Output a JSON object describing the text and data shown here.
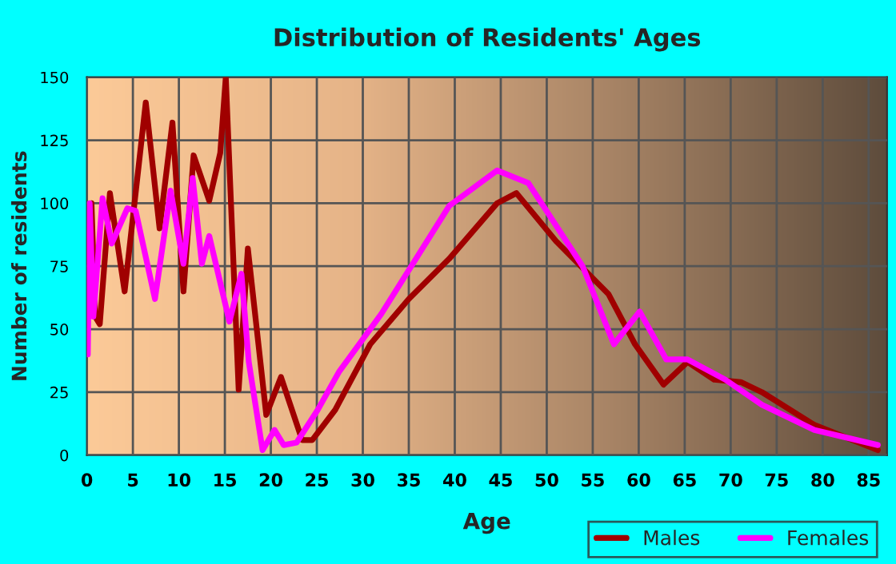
{
  "chart_data": {
    "type": "line",
    "title": "Distribution of Residents' Ages",
    "xlabel": "Age",
    "ylabel": "Number of residents",
    "xlim": [
      0,
      87
    ],
    "xticks": [
      0,
      5,
      10,
      15,
      20,
      25,
      30,
      35,
      40,
      45,
      50,
      55,
      60,
      65,
      70,
      75,
      80,
      85
    ],
    "ylim": [
      0,
      150
    ],
    "yticks": [
      0,
      25,
      50,
      75,
      100,
      125,
      150
    ],
    "grid": true,
    "legend": "bottom right",
    "series": [
      {
        "name": "Males",
        "color": "#a00000",
        "x": [
          0.1,
          0.5,
          0.9,
          1.4,
          2.5,
          4.1,
          6.4,
          7.9,
          9.3,
          10.5,
          11.6,
          13.3,
          14.5,
          15.1,
          16.5,
          17.5,
          19.5,
          21.1,
          23.4,
          24.5,
          27,
          30.8,
          35,
          39.4,
          44.6,
          46.7,
          51,
          56.7,
          59.6,
          62.7,
          65.3,
          68.2,
          71.1,
          73.4,
          79.1,
          86
        ],
        "values": [
          77,
          100,
          55,
          52,
          104,
          65,
          140,
          90,
          132,
          65,
          119,
          101,
          120,
          150,
          26,
          82,
          16,
          31,
          6,
          6,
          18,
          44,
          62,
          78,
          100,
          104,
          85,
          64,
          44,
          28,
          37,
          30,
          29,
          25,
          12,
          2
        ]
      },
      {
        "name": "Females",
        "color": "#ff00ff",
        "x": [
          0.1,
          0.3,
          0.7,
          1.7,
          2.7,
          4.4,
          5.3,
          7.4,
          9.1,
          10.5,
          11.5,
          12.5,
          13.3,
          15.5,
          16.8,
          17.6,
          19.1,
          20.4,
          21.4,
          22.8,
          25.1,
          27.4,
          32,
          39.4,
          44.6,
          48,
          53.9,
          57.3,
          60.1,
          63,
          65.3,
          69.4,
          73.4,
          79.1,
          86
        ],
        "values": [
          40,
          100,
          55,
          102,
          84,
          98,
          97,
          62,
          105,
          76,
          110,
          76,
          87,
          53,
          72,
          37,
          2,
          10,
          4,
          5,
          18,
          33,
          56,
          99,
          113,
          108,
          75,
          44,
          57,
          38,
          38,
          30,
          20,
          10,
          4
        ]
      }
    ]
  }
}
